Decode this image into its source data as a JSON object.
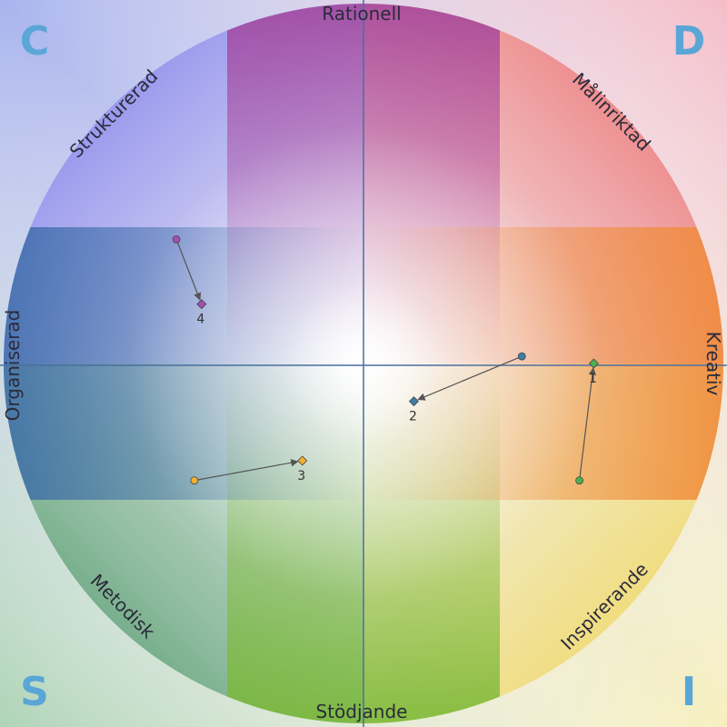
{
  "corners": {
    "top_left": "C",
    "top_right": "D",
    "bottom_left": "S",
    "bottom_right": "I"
  },
  "axes": {
    "top": "Rationell",
    "bottom": "Stödjande",
    "left": "Organiserad",
    "right": "Kreativ"
  },
  "diagonals": {
    "upper_left": "Strukturerad",
    "upper_right": "Målinriktad",
    "lower_left": "Metodisk",
    "lower_right": "Inspirerande"
  },
  "colors": {
    "corner_letter": "#5aa6d6",
    "axis_line": "#4a6fa0",
    "arrow": "#555555"
  },
  "chart_data": {
    "type": "scatter",
    "x_range": [
      -1,
      1
    ],
    "y_range": [
      -1,
      1
    ],
    "points": [
      {
        "label": "1",
        "from": [
          0.6,
          -0.32
        ],
        "to": [
          0.64,
          0.005
        ],
        "color": "#4caf50"
      },
      {
        "label": "2",
        "from": [
          0.44,
          0.025
        ],
        "to": [
          0.14,
          -0.1
        ],
        "color": "#3a7fa8"
      },
      {
        "label": "3",
        "from": [
          -0.47,
          -0.32
        ],
        "to": [
          -0.17,
          -0.265
        ],
        "color": "#f0b030"
      },
      {
        "label": "4",
        "from": [
          -0.52,
          0.35
        ],
        "to": [
          -0.45,
          0.17
        ],
        "color": "#a050b0"
      }
    ]
  }
}
